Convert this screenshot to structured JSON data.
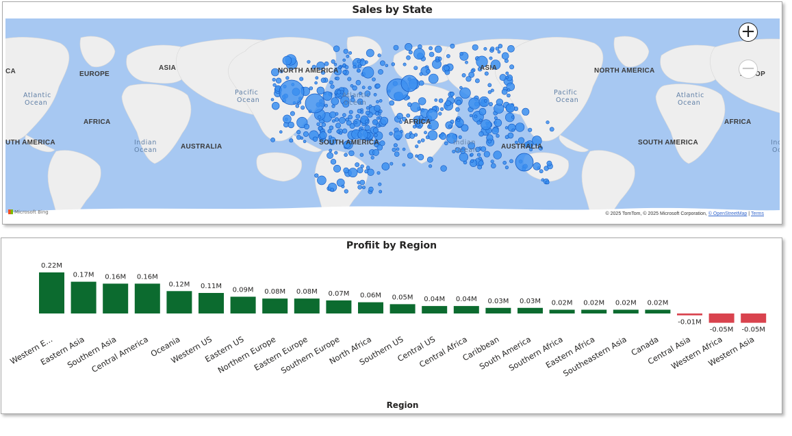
{
  "map_panel": {
    "title": "Sales by State",
    "zoom_in_symbol": "+",
    "zoom_out_symbol": "−",
    "bing_logo_text": "Microsoft Bing",
    "attribution_prefix": "© 2025 TomTom, © 2025 Microsoft Corporation,",
    "attribution_osm": "© OpenStreetMap",
    "attribution_sep": "|",
    "attribution_terms": "Terms",
    "colors": {
      "water": "#a7c8f2",
      "land": "#eeeeee",
      "bubble_fill": "#3b8ff0",
      "bubble_stroke": "#1259c3"
    },
    "place_labels": [
      {
        "text": "CA",
        "kind": "continent"
      },
      {
        "text": "EUROPE",
        "kind": "continent"
      },
      {
        "text": "ASIA",
        "kind": "continent"
      },
      {
        "text": "NORTH AMERICA",
        "kind": "continent"
      },
      {
        "text": "ASIA",
        "kind": "continent"
      },
      {
        "text": "NORTH AMERICA",
        "kind": "continent"
      },
      {
        "text": "EUROP",
        "kind": "continent"
      },
      {
        "text": "AFRICA",
        "kind": "continent"
      },
      {
        "text": "UTH AMERICA",
        "kind": "continent"
      },
      {
        "text": "AUSTRALIA",
        "kind": "continent"
      },
      {
        "text": "SOUTH AMERICA",
        "kind": "continent"
      },
      {
        "text": "AFRICA",
        "kind": "continent"
      },
      {
        "text": "AUSTRALIA",
        "kind": "continent"
      },
      {
        "text": "AFRICA",
        "kind": "continent"
      },
      {
        "text": "SOUTH AMERICA",
        "kind": "continent"
      },
      {
        "text": "Atlantic",
        "kind": "ocean"
      },
      {
        "text": "Ocean",
        "kind": "ocean"
      },
      {
        "text": "Pacific",
        "kind": "ocean"
      },
      {
        "text": "Ocean",
        "kind": "ocean"
      },
      {
        "text": "Atlantic",
        "kind": "ocean"
      },
      {
        "text": "Ocean",
        "kind": "ocean"
      },
      {
        "text": "Pacific",
        "kind": "ocean"
      },
      {
        "text": "Ocean",
        "kind": "ocean"
      },
      {
        "text": "Atlantic",
        "kind": "ocean"
      },
      {
        "text": "Ocean",
        "kind": "ocean"
      },
      {
        "text": "Indian",
        "kind": "ocean"
      },
      {
        "text": "Ocean",
        "kind": "ocean"
      },
      {
        "text": "Indian",
        "kind": "ocean"
      },
      {
        "text": "Ocean",
        "kind": "ocean"
      },
      {
        "text": "Inc",
        "kind": "ocean"
      },
      {
        "text": "Oc",
        "kind": "ocean"
      }
    ]
  },
  "chart_data": {
    "type": "bar",
    "title": "Profiit by Region",
    "xlabel": "Region",
    "ylabel": "",
    "categories": [
      "Western E...",
      "Eastern Asia",
      "Southern Asia",
      "Central America",
      "Oceania",
      "Western US",
      "Eastern US",
      "Northern Europe",
      "Eastern Europe",
      "Southern Europe",
      "North Africa",
      "Southern US",
      "Central US",
      "Central Africa",
      "Caribbean",
      "South America",
      "Southern Africa",
      "Eastern Africa",
      "Southeastern Asia",
      "Canada",
      "Central Asia",
      "Western Africa",
      "Western Asia"
    ],
    "values": [
      0.22,
      0.17,
      0.16,
      0.16,
      0.12,
      0.11,
      0.09,
      0.08,
      0.08,
      0.07,
      0.06,
      0.05,
      0.04,
      0.04,
      0.03,
      0.03,
      0.02,
      0.02,
      0.02,
      0.02,
      -0.01,
      -0.05,
      -0.05
    ],
    "data_labels": [
      "0.22M",
      "0.17M",
      "0.16M",
      "0.16M",
      "0.12M",
      "0.11M",
      "0.09M",
      "0.08M",
      "0.08M",
      "0.07M",
      "0.06M",
      "0.05M",
      "0.04M",
      "0.04M",
      "0.03M",
      "0.03M",
      "0.02M",
      "0.02M",
      "0.02M",
      "0.02M",
      "-0.01M",
      "-0.05M",
      "-0.05M"
    ],
    "unit": "M",
    "positive_color": "#0c6b2f",
    "negative_color": "#d9434e",
    "grid": false,
    "legend": "none",
    "ylim": [
      -0.05,
      0.22
    ]
  }
}
